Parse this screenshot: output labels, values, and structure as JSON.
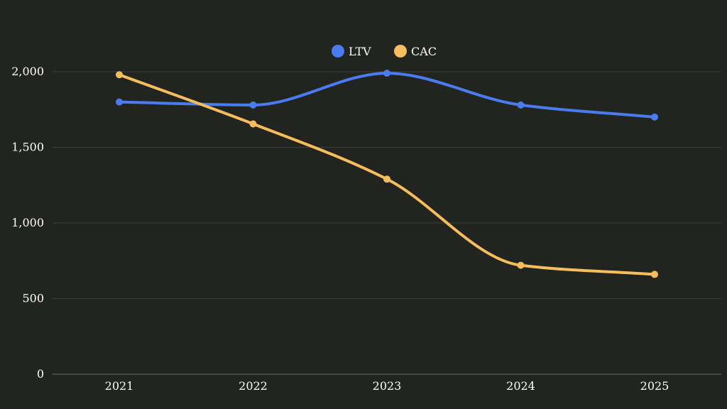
{
  "chart_data": {
    "type": "line",
    "title": "",
    "xlabel": "",
    "ylabel": "",
    "categories": [
      "2021",
      "2022",
      "2023",
      "2024",
      "2025"
    ],
    "ylim": [
      0,
      2000
    ],
    "yticks": [
      0,
      500,
      1000,
      1500,
      2000
    ],
    "ytick_labels": [
      "0",
      "500",
      "1,000",
      "1,500",
      "2,000"
    ],
    "grid": true,
    "legend": "top-center",
    "curve": "smooth",
    "series": [
      {
        "name": "LTV",
        "color": "#4a7cf0",
        "values": [
          1800,
          1780,
          1990,
          1780,
          1700
        ]
      },
      {
        "name": "CAC",
        "color": "#f6bd5c",
        "values": [
          1980,
          1655,
          1290,
          720,
          660
        ]
      }
    ]
  },
  "colors": {
    "background": "#222420",
    "gridline": "#3c3e39",
    "axis_line": "#6a6c66",
    "text": "#ffffff"
  }
}
